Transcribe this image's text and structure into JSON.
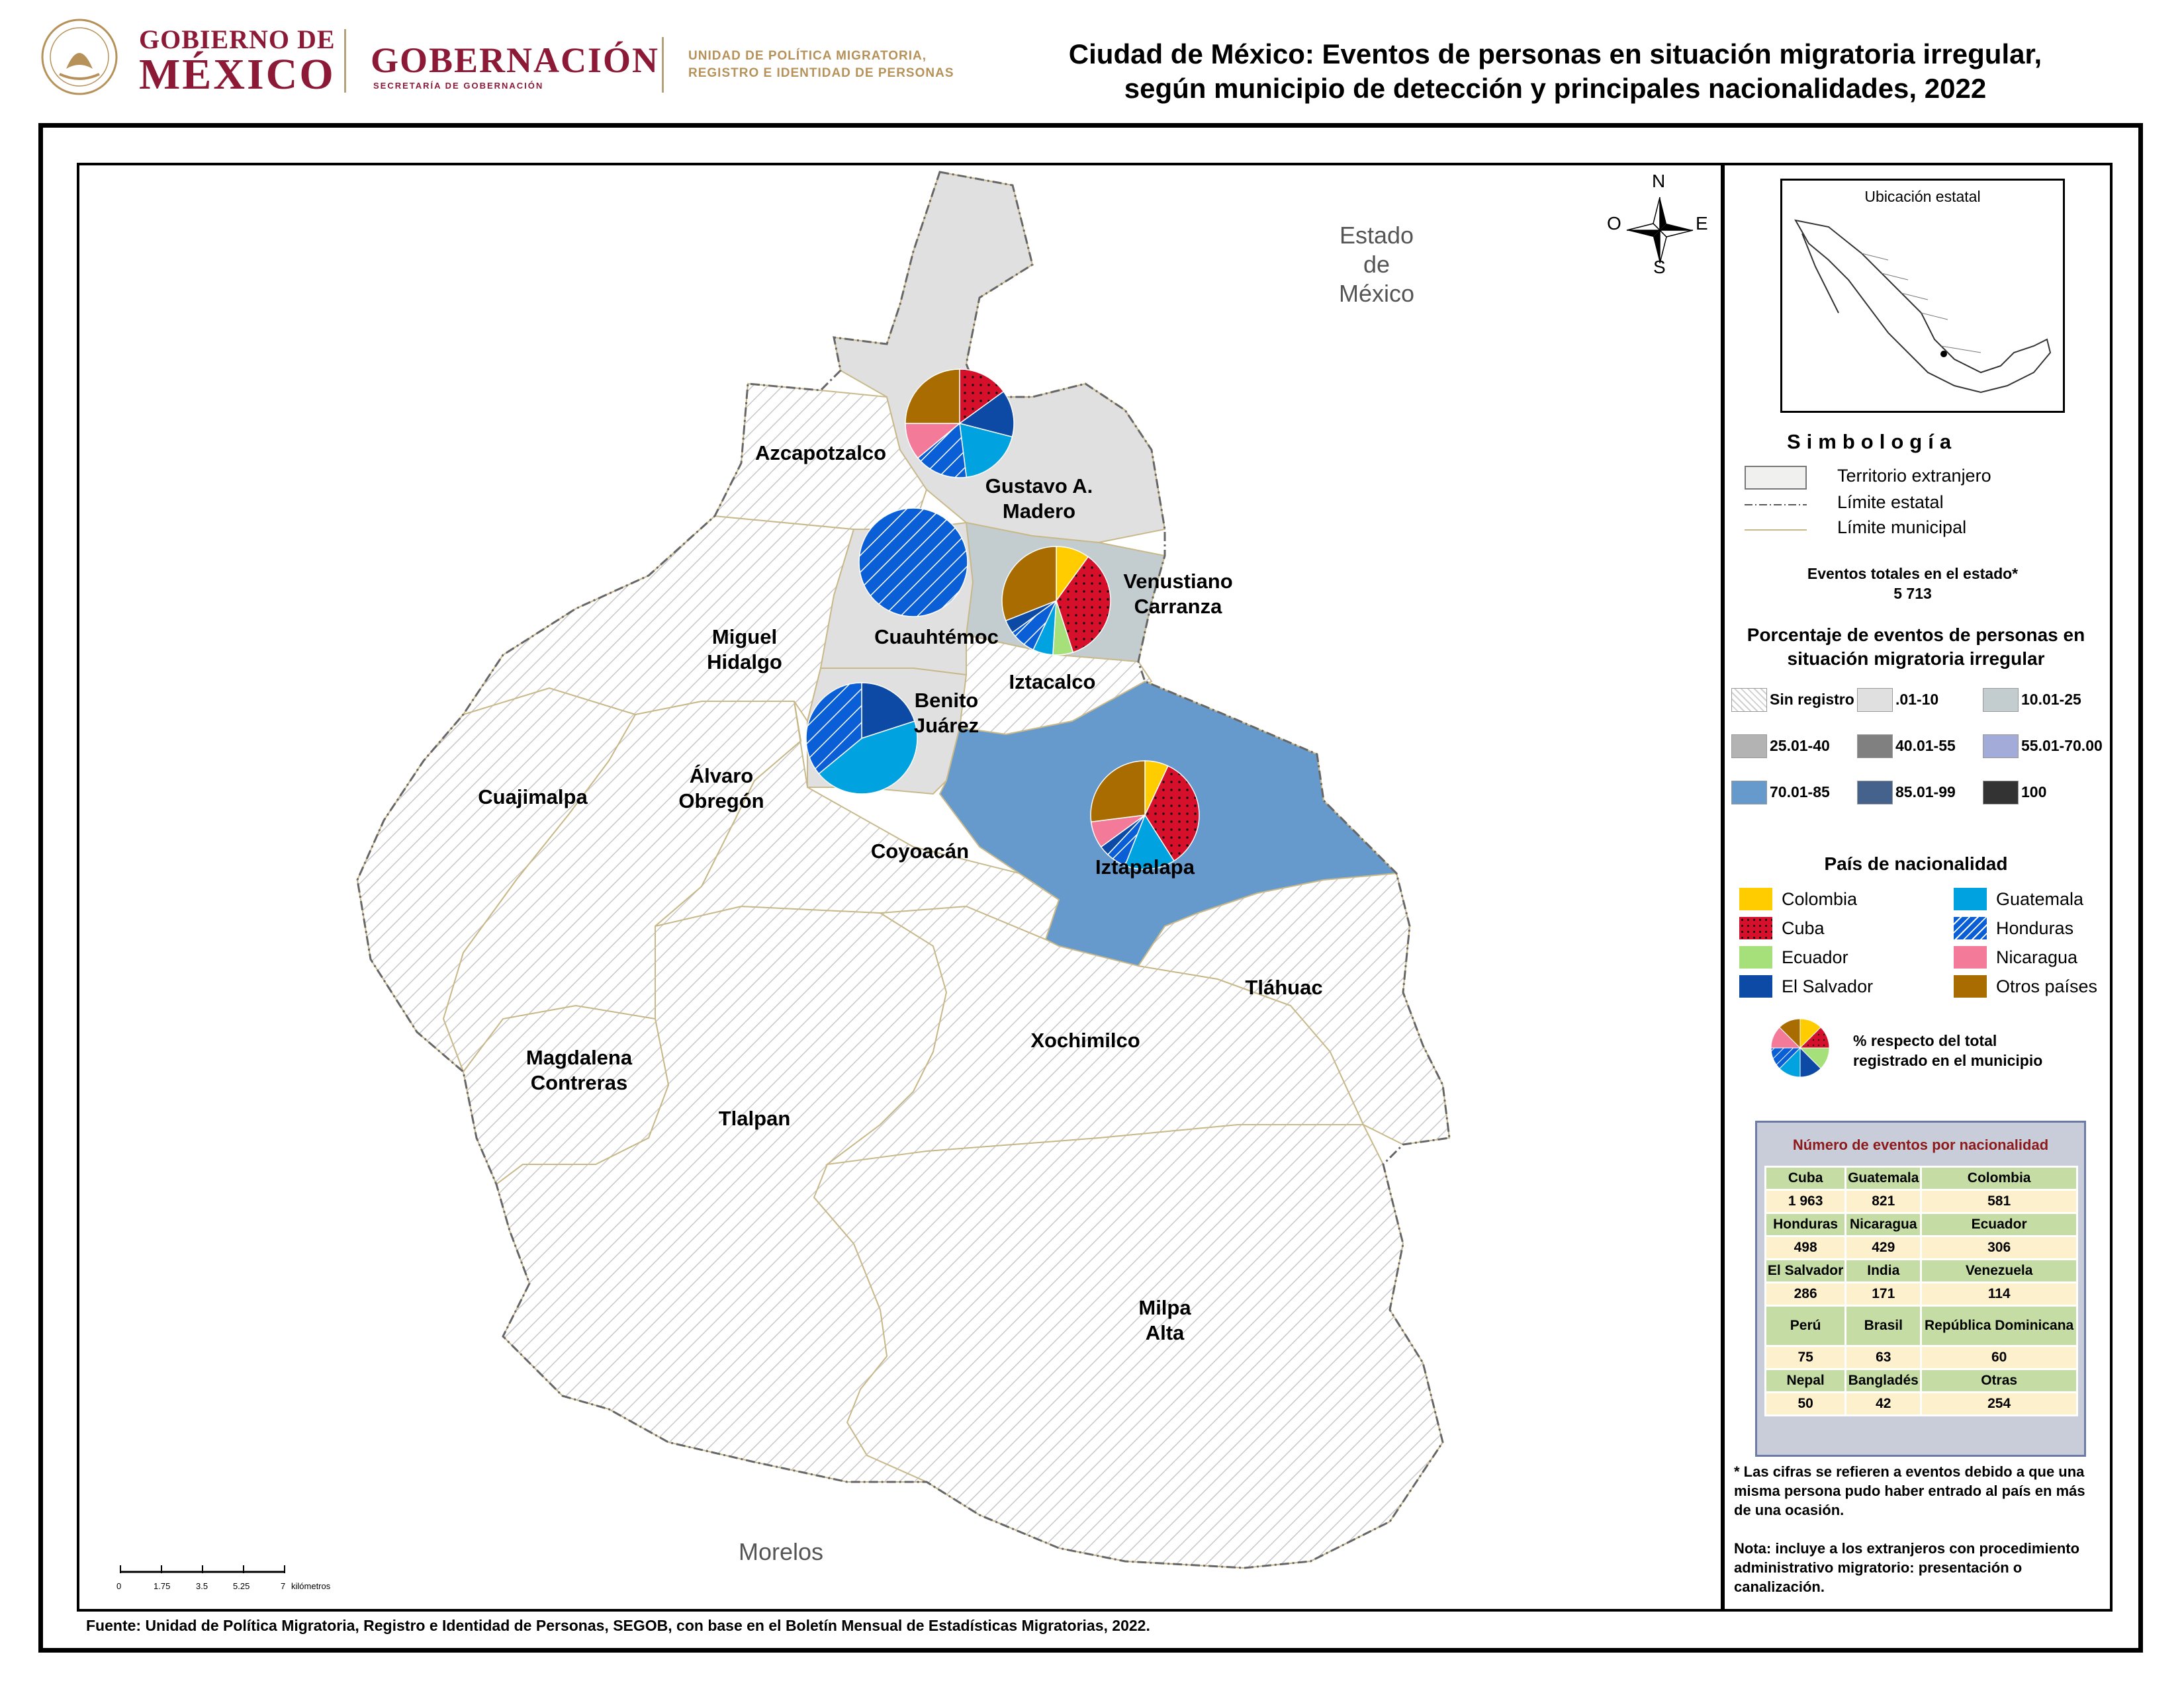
{
  "header": {
    "gob_line1": "GOBIERNO DE",
    "gob_line2": "MÉXICO",
    "gobernacion": "GOBERNACIÓN",
    "secretaria": "SECRETARÍA DE GOBERNACIÓN",
    "unidad_line1": "UNIDAD DE POLÍTICA MIGRATORIA,",
    "unidad_line2": "REGISTRO E IDENTIDAD DE PERSONAS",
    "title_line1": "Ciudad de México: Eventos de personas en situación migratoria irregular,",
    "title_line2": "según municipio de detección y principales nacionalidades, 2022"
  },
  "map": {
    "compass": {
      "n": "N",
      "s": "S",
      "e": "E",
      "o": "O"
    },
    "neighbors": [
      {
        "name": "Estado de México",
        "lines": [
          "Estado",
          "de",
          "México"
        ]
      },
      {
        "name": "Morelos",
        "lines": [
          "Morelos"
        ]
      }
    ],
    "municipalities": [
      {
        "name": "Gustavo A. Madero",
        "lines": [
          "Gustavo A.",
          "Madero"
        ],
        "pct_class": ".01-10",
        "fill": "#e0e0e0"
      },
      {
        "name": "Azcapotzalco",
        "lines": [
          "Azcapotzalco"
        ],
        "pct_class": "Sin registro",
        "fill": "hatch"
      },
      {
        "name": "Cuauhtémoc",
        "lines": [
          "Cuauhtémoc"
        ],
        "pct_class": ".01-10",
        "fill": "#e0e0e0"
      },
      {
        "name": "Venustiano Carranza",
        "lines": [
          "Venustiano",
          "Carranza"
        ],
        "pct_class": "10.01-25",
        "fill": "#c3cccf"
      },
      {
        "name": "Miguel Hidalgo",
        "lines": [
          "Miguel",
          "Hidalgo"
        ],
        "pct_class": "Sin registro",
        "fill": "hatch"
      },
      {
        "name": "Iztacalco",
        "lines": [
          "Iztacalco"
        ],
        "pct_class": "Sin registro",
        "fill": "hatch"
      },
      {
        "name": "Benito Juárez",
        "lines": [
          "Benito",
          "Juárez"
        ],
        "pct_class": ".01-10",
        "fill": "#e0e0e0"
      },
      {
        "name": "Álvaro Obregón",
        "lines": [
          "Álvaro",
          "Obregón"
        ],
        "pct_class": "Sin registro",
        "fill": "hatch"
      },
      {
        "name": "Cuajimalpa",
        "lines": [
          "Cuajimalpa"
        ],
        "pct_class": "Sin registro",
        "fill": "hatch"
      },
      {
        "name": "Coyoacán",
        "lines": [
          "Coyoacán"
        ],
        "pct_class": "Sin registro",
        "fill": "hatch"
      },
      {
        "name": "Iztapalapa",
        "lines": [
          "Iztapalapa"
        ],
        "pct_class": "70.01-85",
        "fill": "#6699cc"
      },
      {
        "name": "Tláhuac",
        "lines": [
          "Tláhuac"
        ],
        "pct_class": "Sin registro",
        "fill": "hatch"
      },
      {
        "name": "Xochimilco",
        "lines": [
          "Xochimilco"
        ],
        "pct_class": "Sin registro",
        "fill": "hatch"
      },
      {
        "name": "Magdalena Contreras",
        "lines": [
          "Magdalena",
          "Contreras"
        ],
        "pct_class": "Sin registro",
        "fill": "hatch"
      },
      {
        "name": "Tlalpan",
        "lines": [
          "Tlalpan"
        ],
        "pct_class": "Sin registro",
        "fill": "hatch"
      },
      {
        "name": "Milpa Alta",
        "lines": [
          "Milpa",
          "Alta"
        ],
        "pct_class": "Sin registro",
        "fill": "hatch"
      }
    ],
    "pies": [
      {
        "municipality": "Gustavo A. Madero",
        "slices": [
          {
            "nat": "Cuba",
            "pct": 15
          },
          {
            "nat": "El Salvador",
            "pct": 14
          },
          {
            "nat": "Guatemala",
            "pct": 19
          },
          {
            "nat": "Honduras",
            "pct": 16
          },
          {
            "nat": "Nicaragua",
            "pct": 11
          },
          {
            "nat": "Otros países",
            "pct": 25
          }
        ]
      },
      {
        "municipality": "Cuauhtémoc",
        "slices": [
          {
            "nat": "Honduras",
            "pct": 100
          }
        ]
      },
      {
        "municipality": "Venustiano Carranza",
        "slices": [
          {
            "nat": "Colombia",
            "pct": 10
          },
          {
            "nat": "Cuba",
            "pct": 35
          },
          {
            "nat": "Ecuador",
            "pct": 6
          },
          {
            "nat": "Guatemala",
            "pct": 6
          },
          {
            "nat": "Honduras",
            "pct": 8
          },
          {
            "nat": "El Salvador",
            "pct": 4
          },
          {
            "nat": "Otros países",
            "pct": 31
          }
        ]
      },
      {
        "municipality": "Benito Juárez",
        "slices": [
          {
            "nat": "El Salvador",
            "pct": 20
          },
          {
            "nat": "Guatemala",
            "pct": 44
          },
          {
            "nat": "Honduras",
            "pct": 36
          }
        ]
      },
      {
        "municipality": "Iztapalapa",
        "slices": [
          {
            "nat": "Colombia",
            "pct": 7
          },
          {
            "nat": "Cuba",
            "pct": 34
          },
          {
            "nat": "Guatemala",
            "pct": 15
          },
          {
            "nat": "Honduras",
            "pct": 6
          },
          {
            "nat": "El Salvador",
            "pct": 3
          },
          {
            "nat": "Nicaragua",
            "pct": 8
          },
          {
            "nat": "Otros países",
            "pct": 27
          }
        ]
      }
    ],
    "scale": {
      "ticks": [
        "0",
        "1.75",
        "3.5",
        "5.25",
        "7"
      ],
      "unit": "kilómetros"
    }
  },
  "legend": {
    "inset_title": "Ubicación estatal",
    "simbologia": "Simbología",
    "symbols": [
      {
        "name": "Territorio extranjero"
      },
      {
        "name": "Límite estatal"
      },
      {
        "name": "Límite municipal"
      }
    ],
    "events_label": "Eventos totales en el estado*",
    "events_total": "5 713",
    "pct_title_line1": "Porcentaje de eventos de personas en",
    "pct_title_line2": "situación migratoria irregular",
    "classes": [
      {
        "label": "Sin registro",
        "color": "hatch"
      },
      {
        "label": ".01-10",
        "color": "#e0e0e0"
      },
      {
        "label": "10.01-25",
        "color": "#c3cccf"
      },
      {
        "label": "25.01-40",
        "color": "#b3b3b3"
      },
      {
        "label": "40.01-55",
        "color": "#808080"
      },
      {
        "label": "55.01-70.00",
        "color": "#a3acd9"
      },
      {
        "label": "70.01-85",
        "color": "#6699cc"
      },
      {
        "label": "85.01-99",
        "color": "#44628c"
      },
      {
        "label": "100",
        "color": "#333333"
      }
    ],
    "pais_title": "País de nacionalidad",
    "nationalities": [
      {
        "label": "Colombia",
        "color": "#ffcc00",
        "pattern": "solid"
      },
      {
        "label": "Guatemala",
        "color": "#00a3e0",
        "pattern": "solid"
      },
      {
        "label": "Cuba",
        "color": "#d6102b",
        "pattern": "dots"
      },
      {
        "label": "Honduras",
        "color": "#0a5fd6",
        "pattern": "stripes"
      },
      {
        "label": "Ecuador",
        "color": "#a6e07a",
        "pattern": "solid"
      },
      {
        "label": "Nicaragua",
        "color": "#f47a99",
        "pattern": "solid"
      },
      {
        "label": "El Salvador",
        "color": "#0d4aa6",
        "pattern": "solid"
      },
      {
        "label": "Otros países",
        "color": "#a86c00",
        "pattern": "solid"
      }
    ],
    "pie_note_line1": "%  respecto del total",
    "pie_note_line2": "registrado en el municipio",
    "table_title": "Número de eventos por nacionalidad",
    "table": [
      {
        "nat": "Cuba",
        "count": "1 963"
      },
      {
        "nat": "Guatemala",
        "count": "821"
      },
      {
        "nat": "Colombia",
        "count": "581"
      },
      {
        "nat": "Honduras",
        "count": "498"
      },
      {
        "nat": "Nicaragua",
        "count": "429"
      },
      {
        "nat": "Ecuador",
        "count": "306"
      },
      {
        "nat": "El Salvador",
        "count": "286"
      },
      {
        "nat": "India",
        "count": "171"
      },
      {
        "nat": "Venezuela",
        "count": "114"
      },
      {
        "nat": "Perú",
        "count": "75"
      },
      {
        "nat": "Brasil",
        "count": "63"
      },
      {
        "nat": "República Dominicana",
        "count": "60"
      },
      {
        "nat": "Nepal",
        "count": "50"
      },
      {
        "nat": "Bangladés",
        "count": "42"
      },
      {
        "nat": "Otras",
        "count": "254"
      }
    ],
    "footnote": "* Las cifras se refieren a eventos debido a que una misma persona pudo haber entrado al país en más de una ocasión.",
    "nota": "Nota: incluye a los extranjeros con procedimiento administrativo migratorio: presentación o canalización."
  },
  "source": "Fuente: Unidad de Política Migratoria, Registro e Identidad de Personas, SEGOB, con base en el Boletín Mensual de Estadísticas Migratorias, 2022."
}
